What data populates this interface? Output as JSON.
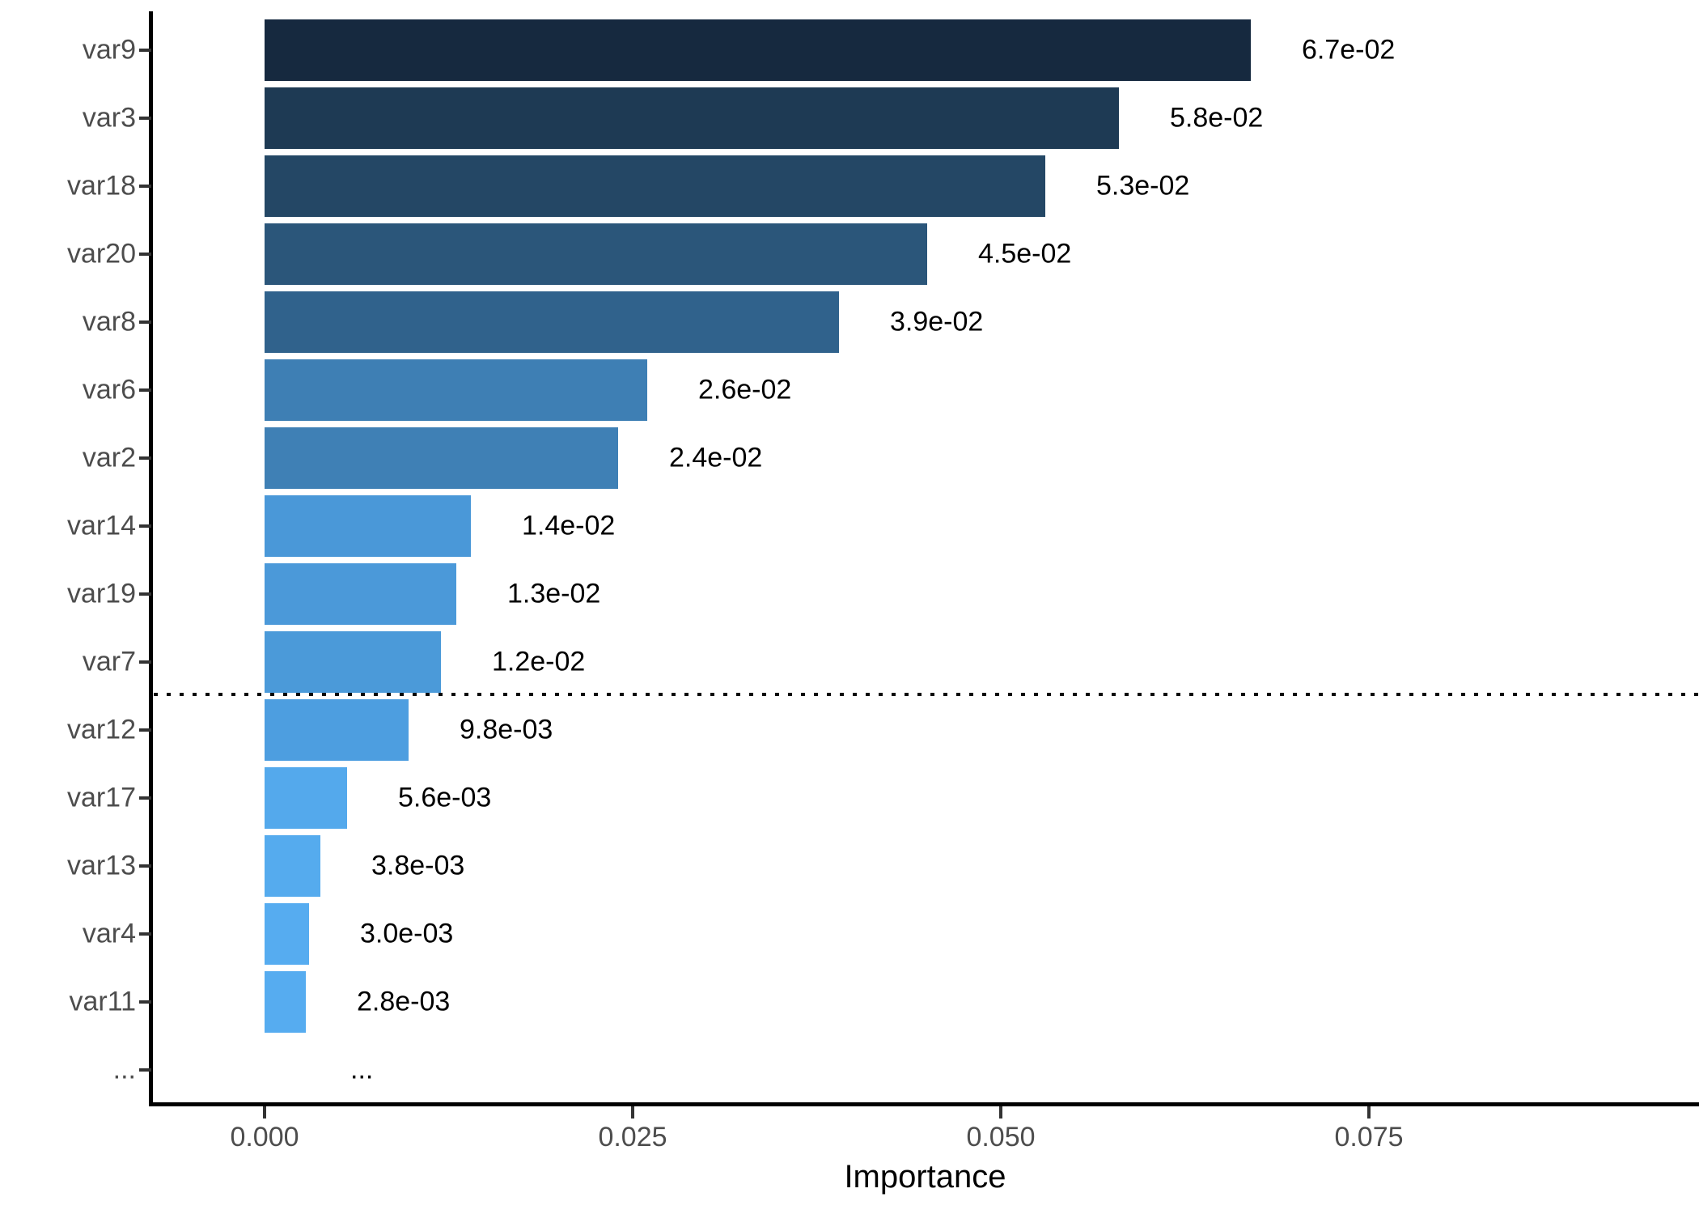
{
  "chart_data": {
    "type": "bar",
    "orientation": "horizontal",
    "title": "",
    "xlabel": "Importance",
    "ylabel": "",
    "categories": [
      "var9",
      "var3",
      "var18",
      "var20",
      "var8",
      "var6",
      "var2",
      "var14",
      "var19",
      "var7",
      "var12",
      "var17",
      "var13",
      "var4",
      "var11",
      "..."
    ],
    "values": [
      0.067,
      0.058,
      0.053,
      0.045,
      0.039,
      0.026,
      0.024,
      0.014,
      0.013,
      0.012,
      0.0098,
      0.0056,
      0.0038,
      0.003,
      0.0028,
      null
    ],
    "bar_labels": [
      "6.7e-02",
      "5.8e-02",
      "5.3e-02",
      "4.5e-02",
      "3.9e-02",
      "2.6e-02",
      "2.4e-02",
      "1.4e-02",
      "1.3e-02",
      "1.2e-02",
      "9.8e-03",
      "5.6e-03",
      "3.8e-03",
      "3.0e-03",
      "2.8e-03",
      "..."
    ],
    "bar_colors": [
      "#16293F",
      "#1E3A54",
      "#244765",
      "#2B567A",
      "#30628C",
      "#3E7FB4",
      "#3F80B5",
      "#4A98D8",
      "#4B99D9",
      "#4B9AD9",
      "#4D9EE0",
      "#54A9EC",
      "#55ABEE",
      "#56ACF0",
      "#56ACF0",
      null
    ],
    "x_ticks": {
      "values": [
        0,
        0.025,
        0.05,
        0.075
      ],
      "labels": [
        "0.000",
        "0.025",
        "0.050",
        "0.075"
      ]
    },
    "xlim": [
      0,
      0.096
    ],
    "grid": false,
    "legend": "none",
    "threshold_line": {
      "style": "dotted",
      "color": "#000000",
      "after_category": "var7",
      "after_index": 9
    },
    "colors": {
      "axis_text": "#4D4D4D",
      "value_text": "#000000",
      "axis_line": "#000000",
      "background": "#FFFFFF",
      "fill_gradient_high": "#132B43",
      "fill_gradient_low": "#56B1F7"
    }
  }
}
